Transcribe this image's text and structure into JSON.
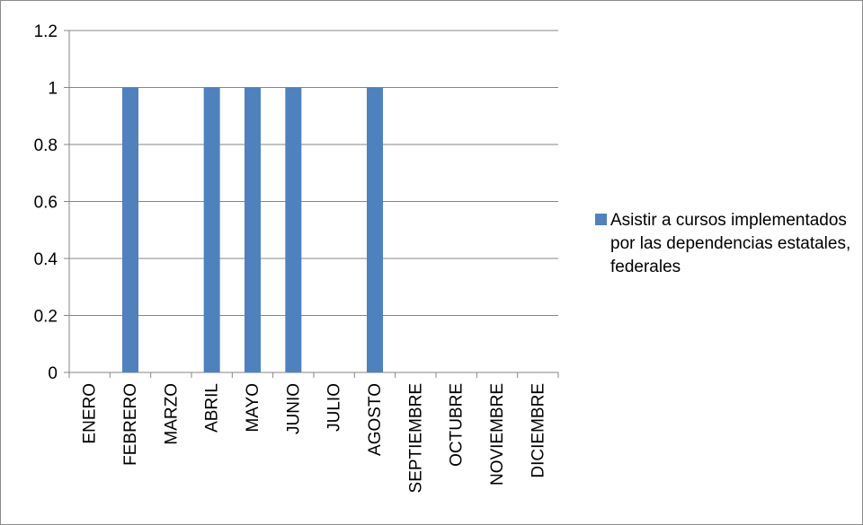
{
  "chart_data": {
    "type": "bar",
    "categories": [
      "ENERO",
      "FEBRERO",
      "MARZO",
      "ABRIL",
      "MAYO",
      "JUNIO",
      "JULIO",
      "AGOSTO",
      "SEPTIEMBRE",
      "OCTUBRE",
      "NOVIEMBRE",
      "DICIEMBRE"
    ],
    "series": [
      {
        "name": "Asistir a cursos implementados por las dependencias estatales, federales",
        "values": [
          0,
          1,
          0,
          1,
          1,
          1,
          0,
          1,
          0,
          0,
          0,
          0
        ],
        "color": "#4f81bd"
      }
    ],
    "yticks": [
      "0",
      "0.2",
      "0.4",
      "0.6",
      "0.8",
      "1",
      "1.2"
    ],
    "ylim": [
      0,
      1.2
    ],
    "grid": true,
    "legend_position": "right"
  }
}
